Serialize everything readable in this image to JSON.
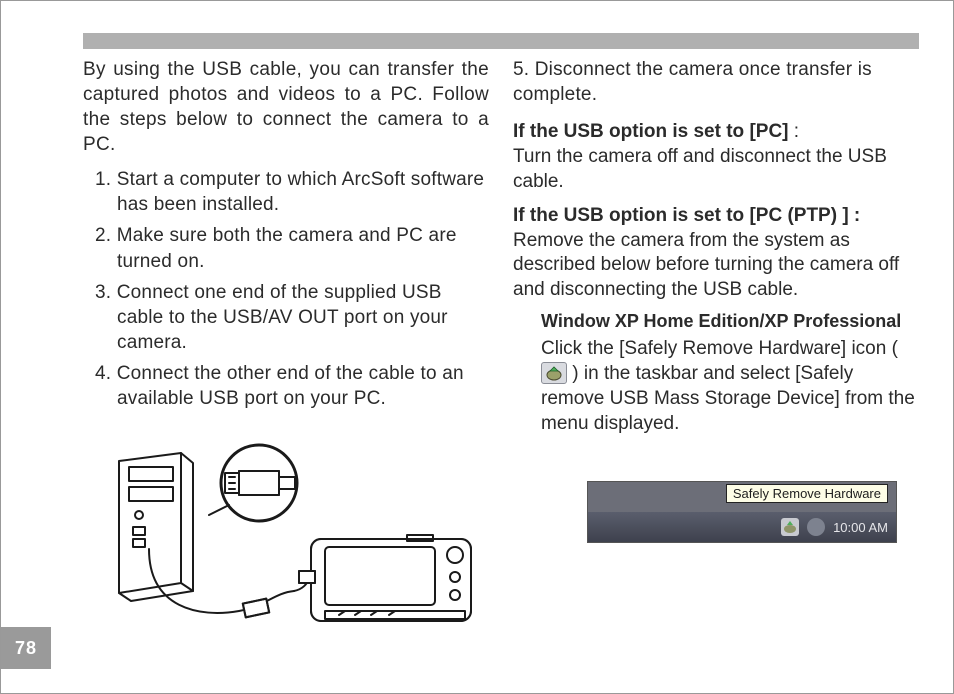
{
  "page_number": "78",
  "colors": {
    "top_bar": "#b0b0b0",
    "page_tab_bg": "#9a9a9a",
    "page_tab_fg": "#ffffff",
    "body_text": "#2b2b2b",
    "tooltip_bg": "#fdfde6",
    "taskbar_bg_top": "#5a5e6d",
    "taskbar_bg_bottom": "#3e414d",
    "shot_bg": "#6c6e78"
  },
  "fonts": {
    "body_size_pt": 14,
    "heading_weight": "bold"
  },
  "left_column": {
    "intro": "By using the USB cable, you can transfer the captured photos and videos to a PC. Follow the steps below to connect the camera to a PC.",
    "steps": [
      {
        "n": "1.",
        "text": "Start a computer to which ArcSoft software has been installed."
      },
      {
        "n": "2.",
        "text": "Make sure both the camera and PC are turned on."
      },
      {
        "n": "3.",
        "text": "Connect one end of the supplied USB cable to the USB/AV OUT port on your camera."
      },
      {
        "n": "4.",
        "text": "Connect the other end of the cable to an available USB port on your PC."
      }
    ]
  },
  "right_column": {
    "step5": {
      "n": "5.",
      "text": "Disconnect the camera once transfer is complete."
    },
    "section_pc": {
      "heading": "If the USB option is set to [PC]",
      "heading_suffix": " :",
      "body": "Turn the camera off and disconnect the USB cable."
    },
    "section_ptp": {
      "heading": "If the USB option is set to [PC (PTP) ] :",
      "body": "Remove the camera from the system as described below before turning the camera off and disconnecting the USB cable."
    },
    "windows_block": {
      "heading": "Window XP Home Edition/XP Professional",
      "body_pre": "Click the [Safely Remove Hardware] icon ( ",
      "body_post": " ) in the taskbar and select [Safely remove USB Mass Storage Device] from the menu displayed."
    }
  },
  "tooltip_screenshot": {
    "balloon_text": "Safely Remove Hardware",
    "clock_text": "10:00 AM"
  },
  "diagram": {
    "type": "line-illustration",
    "description": "PC tower connected via USB cable to a compact digital camera; magnified circle shows USB plug entering PC port",
    "stroke": "#1a1a1a",
    "stroke_width": 2
  }
}
